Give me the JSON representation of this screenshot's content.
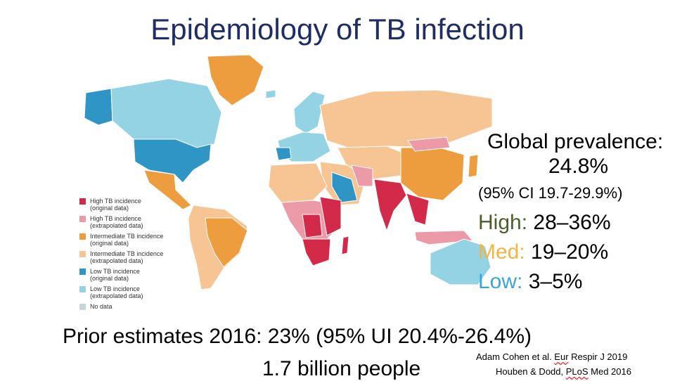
{
  "title": "Epidemiology of TB infection",
  "colors": {
    "high_original": "#d42a4a",
    "high_extrapolated": "#ec9aa7",
    "intermediate_original": "#ee9d3e",
    "intermediate_extrapolated": "#f7c594",
    "low_original": "#2f95c4",
    "low_extrapolated": "#94d3e3",
    "no_data": "#c7d6d7",
    "title": "#1f2d66",
    "high_label": "#4b5f2a",
    "med_label": "#f2b544",
    "low_label": "#3da4d8"
  },
  "legend": [
    {
      "line1": "High TB incidence",
      "line2": "(original data)",
      "color_key": "high_original"
    },
    {
      "line1": "High TB incidence",
      "line2": "(extrapolated data)",
      "color_key": "high_extrapolated"
    },
    {
      "line1": "Intermediate TB incidence",
      "line2": "(original data)",
      "color_key": "intermediate_original"
    },
    {
      "line1": "Intermediate TB incidence",
      "line2": "(extrapolated data)",
      "color_key": "intermediate_extrapolated"
    },
    {
      "line1": "Low TB incidence",
      "line2": "(original data)",
      "color_key": "low_original"
    },
    {
      "line1": "Low TB incidence",
      "line2": "(extrapolated data)",
      "color_key": "low_extrapolated"
    },
    {
      "line1": "No data",
      "line2": "",
      "color_key": "no_data"
    }
  ],
  "stats": {
    "global_label": "Global prevalence:",
    "global_value": "24.8%",
    "global_ci": "(95% CI 19.7-29.9%)",
    "high_label": "High:",
    "high_value": "28–36%",
    "med_label": "Med:",
    "med_value": "19–20%",
    "low_label": "Low:",
    "low_value": "3–5%"
  },
  "prior": "Prior estimates 2016: 23% (95% UI 20.4%-26.4%)",
  "people": "1.7 billion people",
  "citations": {
    "cohen_pre": "Adam Cohen et al. ",
    "cohen_journal": "Eur",
    "cohen_post": " Respir J 2019",
    "houben_pre": "Houben & Dodd, ",
    "houben_journal": "PLoS",
    "houben_post": " Med 2016"
  }
}
